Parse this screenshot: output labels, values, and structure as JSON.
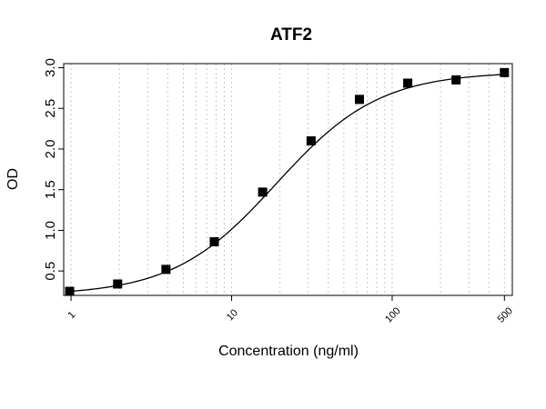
{
  "chart_data": {
    "type": "scatter",
    "title": "ATF2",
    "xlabel": "Concentration (ng/ml)",
    "ylabel": "OD",
    "x_scale": "log",
    "xlim": [
      0.9,
      560
    ],
    "ylim": [
      0.2,
      3.05
    ],
    "x_ticks": [
      {
        "value": 1,
        "label": "1"
      },
      {
        "value": 10,
        "label": "10"
      },
      {
        "value": 100,
        "label": "100"
      },
      {
        "value": 500,
        "label": "500"
      }
    ],
    "y_ticks": [
      {
        "value": 0.5,
        "label": "0.5"
      },
      {
        "value": 1.0,
        "label": "1.0"
      },
      {
        "value": 1.5,
        "label": "1.5"
      },
      {
        "value": 2.0,
        "label": "2.0"
      },
      {
        "value": 2.5,
        "label": "2.5"
      },
      {
        "value": 3.0,
        "label": "3.0"
      }
    ],
    "grid": "vertical dotted at log decade subdivisions",
    "series": [
      {
        "marker": "square",
        "color": "#000000",
        "x": [
          0.98,
          1.95,
          3.9,
          7.8,
          15.6,
          31.25,
          62.5,
          125,
          250,
          500
        ],
        "y": [
          0.25,
          0.34,
          0.52,
          0.86,
          1.47,
          2.1,
          2.61,
          2.81,
          2.85,
          2.94
        ]
      }
    ],
    "fit_curve": {
      "model": "4PL",
      "bottom": 0.2,
      "top": 2.95,
      "ec50": 19,
      "hill": 1.35,
      "color": "#000000"
    }
  }
}
